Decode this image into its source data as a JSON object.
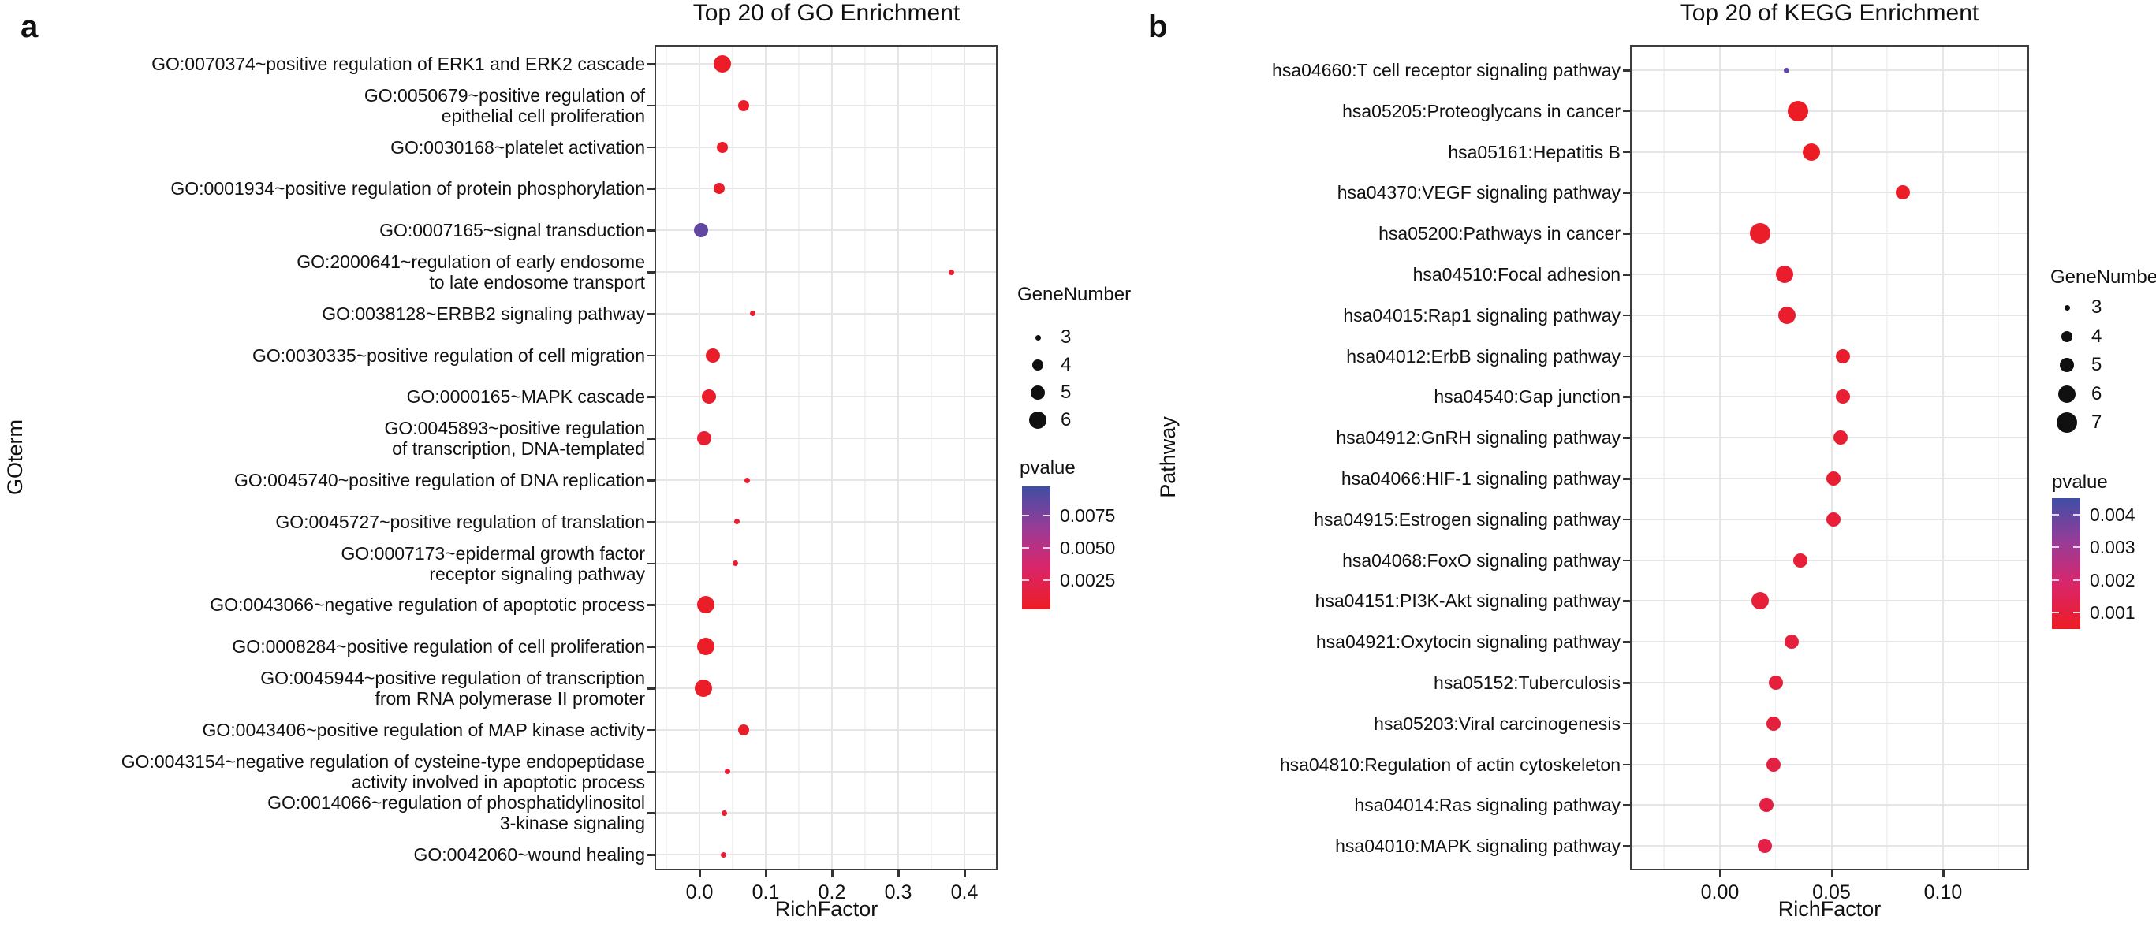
{
  "figure_title": "GO and KEGG enrichment bubble plots",
  "chart_data": [
    {
      "type": "scatter",
      "panel_label": "a",
      "title": "Top 20 of GO Enrichment",
      "xlabel": "RichFactor",
      "ylabel": "GOterm",
      "x_tick_values": [
        0.0,
        0.1,
        0.2,
        0.3,
        0.4
      ],
      "x_tick_labels": [
        "0.0",
        "0.1",
        "0.2",
        "0.3",
        "0.4"
      ],
      "x_range": [
        -0.068,
        0.452
      ],
      "grid": true,
      "legend_position": "right",
      "legend": {
        "size_title": "GeneNumber",
        "size_values": [
          3,
          4,
          5,
          6
        ],
        "color_title": "pvalue",
        "color_tick_values": [
          0.0075,
          0.005,
          0.0025
        ],
        "color_tick_labels": [
          "0.0075",
          "0.0050",
          "0.0025"
        ],
        "color_range": [
          0.0003,
          0.0097
        ]
      },
      "points": [
        {
          "label": "GO:0070374~positive regulation of ERK1 and ERK2 cascade",
          "rich_factor": 0.034,
          "gene_number": 6,
          "pvalue": 0.0005
        },
        {
          "label": "GO:0050679~positive regulation of\nepithelial cell proliferation",
          "rich_factor": 0.067,
          "gene_number": 4,
          "pvalue": 0.0005
        },
        {
          "label": "GO:0030168~platelet activation",
          "rich_factor": 0.035,
          "gene_number": 4,
          "pvalue": 0.0006
        },
        {
          "label": "GO:0001934~positive regulation of protein phosphorylation",
          "rich_factor": 0.03,
          "gene_number": 4,
          "pvalue": 0.0007
        },
        {
          "label": "GO:0007165~signal transduction",
          "rich_factor": 0.002,
          "gene_number": 5,
          "pvalue": 0.0085
        },
        {
          "label": "GO:2000641~regulation of early endosome\nto late endosome transport",
          "rich_factor": 0.38,
          "gene_number": 3,
          "pvalue": 0.0008
        },
        {
          "label": "GO:0038128~ERBB2 signaling pathway",
          "rich_factor": 0.08,
          "gene_number": 3,
          "pvalue": 0.0008
        },
        {
          "label": "GO:0030335~positive regulation of cell migration",
          "rich_factor": 0.02,
          "gene_number": 5,
          "pvalue": 0.0006
        },
        {
          "label": "GO:0000165~MAPK cascade",
          "rich_factor": 0.014,
          "gene_number": 5,
          "pvalue": 0.0007
        },
        {
          "label": "GO:0045893~positive regulation\nof transcription, DNA-templated",
          "rich_factor": 0.007,
          "gene_number": 5,
          "pvalue": 0.0009
        },
        {
          "label": "GO:0045740~positive regulation of DNA replication",
          "rich_factor": 0.072,
          "gene_number": 3,
          "pvalue": 0.0009
        },
        {
          "label": "GO:0045727~positive regulation of translation",
          "rich_factor": 0.057,
          "gene_number": 3,
          "pvalue": 0.001
        },
        {
          "label": "GO:0007173~epidermal growth factor\nreceptor signaling pathway",
          "rich_factor": 0.054,
          "gene_number": 3,
          "pvalue": 0.001
        },
        {
          "label": "GO:0043066~negative regulation of apoptotic process",
          "rich_factor": 0.01,
          "gene_number": 6,
          "pvalue": 0.0005
        },
        {
          "label": "GO:0008284~positive regulation of cell proliferation",
          "rich_factor": 0.01,
          "gene_number": 6,
          "pvalue": 0.0005
        },
        {
          "label": "GO:0045944~positive regulation of transcription\nfrom RNA polymerase II promoter",
          "rich_factor": 0.006,
          "gene_number": 6,
          "pvalue": 0.0005
        },
        {
          "label": "GO:0043406~positive regulation of MAP kinase activity",
          "rich_factor": 0.067,
          "gene_number": 4,
          "pvalue": 0.0006
        },
        {
          "label": "GO:0043154~negative regulation of cysteine-type endopeptidase\nactivity involved in apoptotic process",
          "rich_factor": 0.042,
          "gene_number": 3,
          "pvalue": 0.0011
        },
        {
          "label": "GO:0014066~regulation of phosphatidylinositol\n3-kinase signaling",
          "rich_factor": 0.037,
          "gene_number": 3,
          "pvalue": 0.0011
        },
        {
          "label": "GO:0042060~wound healing",
          "rich_factor": 0.036,
          "gene_number": 3,
          "pvalue": 0.0012
        }
      ]
    },
    {
      "type": "scatter",
      "panel_label": "b",
      "title": "Top 20 of KEGG Enrichment",
      "xlabel": "RichFactor",
      "ylabel": "Pathway",
      "x_tick_values": [
        0.0,
        0.05,
        0.1
      ],
      "x_tick_labels": [
        "0.00",
        "0.05",
        "0.10"
      ],
      "x_range": [
        -0.04,
        0.139
      ],
      "grid": true,
      "legend_position": "right",
      "legend": {
        "size_title": "GeneNumber",
        "size_values": [
          3,
          4,
          5,
          6,
          7
        ],
        "color_title": "pvalue",
        "color_tick_values": [
          0.004,
          0.003,
          0.002,
          0.001
        ],
        "color_tick_labels": [
          "0.004",
          "0.003",
          "0.002",
          "0.001"
        ],
        "color_range": [
          0.0005,
          0.0045
        ]
      },
      "points": [
        {
          "label": "hsa04660:T cell receptor signaling pathway",
          "rich_factor": 0.03,
          "gene_number": 3,
          "pvalue": 0.004
        },
        {
          "label": "hsa05205:Proteoglycans in cancer",
          "rich_factor": 0.035,
          "gene_number": 7,
          "pvalue": 0.0005
        },
        {
          "label": "hsa05161:Hepatitis B",
          "rich_factor": 0.041,
          "gene_number": 6,
          "pvalue": 0.0005
        },
        {
          "label": "hsa04370:VEGF signaling pathway",
          "rich_factor": 0.082,
          "gene_number": 5,
          "pvalue": 0.0006
        },
        {
          "label": "hsa05200:Pathways in cancer",
          "rich_factor": 0.018,
          "gene_number": 7,
          "pvalue": 0.0006
        },
        {
          "label": "hsa04510:Focal adhesion",
          "rich_factor": 0.029,
          "gene_number": 6,
          "pvalue": 0.0007
        },
        {
          "label": "hsa04015:Rap1 signaling pathway",
          "rich_factor": 0.03,
          "gene_number": 6,
          "pvalue": 0.0007
        },
        {
          "label": "hsa04012:ErbB signaling pathway",
          "rich_factor": 0.055,
          "gene_number": 5,
          "pvalue": 0.0007
        },
        {
          "label": "hsa04540:Gap junction",
          "rich_factor": 0.055,
          "gene_number": 5,
          "pvalue": 0.0008
        },
        {
          "label": "hsa04912:GnRH signaling pathway",
          "rich_factor": 0.054,
          "gene_number": 5,
          "pvalue": 0.0008
        },
        {
          "label": "hsa04066:HIF-1 signaling pathway",
          "rich_factor": 0.051,
          "gene_number": 5,
          "pvalue": 0.0008
        },
        {
          "label": "hsa04915:Estrogen signaling pathway",
          "rich_factor": 0.051,
          "gene_number": 5,
          "pvalue": 0.0009
        },
        {
          "label": "hsa04068:FoxO signaling pathway",
          "rich_factor": 0.036,
          "gene_number": 5,
          "pvalue": 0.0009
        },
        {
          "label": "hsa04151:PI3K-Akt signaling pathway",
          "rich_factor": 0.018,
          "gene_number": 6,
          "pvalue": 0.0009
        },
        {
          "label": "hsa04921:Oxytocin signaling pathway",
          "rich_factor": 0.032,
          "gene_number": 5,
          "pvalue": 0.001
        },
        {
          "label": "hsa05152:Tuberculosis",
          "rich_factor": 0.025,
          "gene_number": 5,
          "pvalue": 0.001
        },
        {
          "label": "hsa05203:Viral carcinogenesis",
          "rich_factor": 0.024,
          "gene_number": 5,
          "pvalue": 0.001
        },
        {
          "label": "hsa04810:Regulation of actin cytoskeleton",
          "rich_factor": 0.024,
          "gene_number": 5,
          "pvalue": 0.0011
        },
        {
          "label": "hsa04014:Ras signaling pathway",
          "rich_factor": 0.021,
          "gene_number": 5,
          "pvalue": 0.0011
        },
        {
          "label": "hsa04010:MAPK signaling pathway",
          "rich_factor": 0.02,
          "gene_number": 5,
          "pvalue": 0.0012
        }
      ]
    }
  ],
  "colors": {
    "point_low_pvalue": "#EC1C24",
    "point_mid1_pvalue": "#D9266B",
    "point_mid2_pvalue": "#9B3B96",
    "point_high_pvalue": "#3F4EA5",
    "grid_major": "#e6e6e6",
    "grid_minor": "#f3f3f3",
    "box_border": "#3d3d3d"
  }
}
